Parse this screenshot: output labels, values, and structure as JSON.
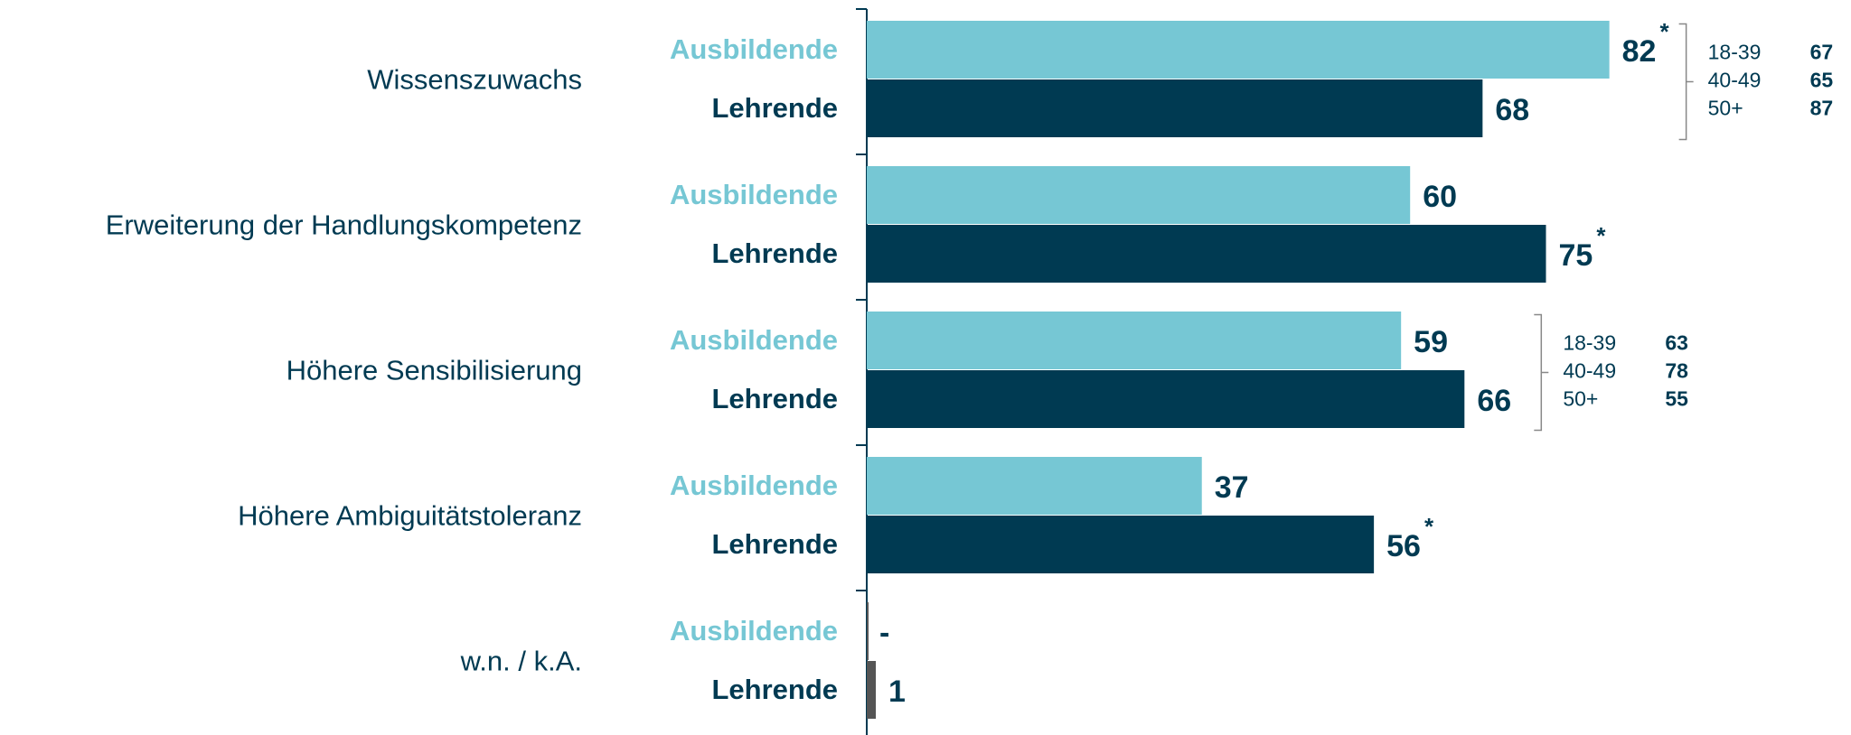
{
  "chart_data": {
    "type": "bar",
    "orientation": "horizontal",
    "categories": [
      "Wissenszuwachs",
      "Erweiterung der Handlungskompetenz",
      "Höhere Sensibilisierung",
      "Höhere Ambiguitätstoleranz",
      "w.n. / k.A."
    ],
    "series": [
      {
        "name": "Ausbildende",
        "color": "#76c7d4",
        "colors": [
          "#76c7d4",
          "#76c7d4",
          "#76c7d4",
          "#76c7d4",
          "#555555"
        ],
        "values": [
          82,
          60,
          59,
          37,
          null
        ],
        "value_labels": [
          "82",
          "60",
          "59",
          "37",
          "-"
        ],
        "markers": [
          "*",
          null,
          null,
          null,
          null
        ]
      },
      {
        "name": "Lehrende",
        "color": "#003a52",
        "colors": [
          "#003a52",
          "#003a52",
          "#003a52",
          "#003a52",
          "#555555"
        ],
        "values": [
          68,
          75,
          66,
          56,
          1
        ],
        "value_labels": [
          "68",
          "75",
          "66",
          "56",
          "1"
        ],
        "markers": [
          null,
          "*",
          null,
          "*",
          null
        ]
      }
    ],
    "xlim": [
      0,
      100
    ],
    "breakdowns": [
      {
        "category": "Wissenszuwachs",
        "groups": [
          "18-39",
          "40-49",
          "50+"
        ],
        "values": [
          67,
          65,
          87
        ]
      },
      {
        "category": "Höhere Sensibilisierung",
        "groups": [
          "18-39",
          "40-49",
          "50+"
        ],
        "values": [
          63,
          78,
          55
        ]
      }
    ]
  }
}
